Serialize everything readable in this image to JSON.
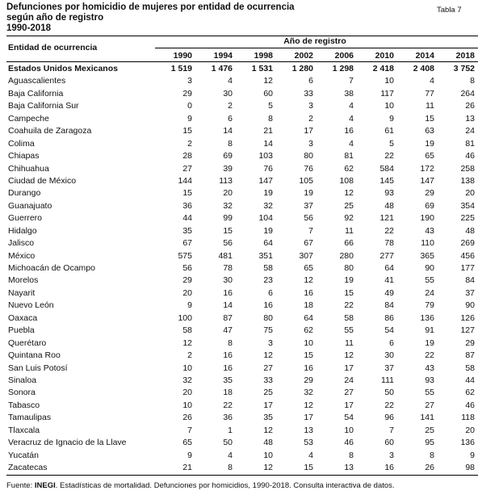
{
  "header": {
    "title": [
      "Defunciones por homicidio de mujeres por entidad de ocurrencia",
      "según año de registro",
      "1990-2018"
    ],
    "tag": "Tabla 7"
  },
  "table": {
    "row_header": "Entidad de ocurrencia",
    "group_header": "Año de registro",
    "columns": [
      "1990",
      "1994",
      "1998",
      "2002",
      "2006",
      "2010",
      "2014",
      "2018"
    ],
    "rows": [
      [
        "Estados Unidos Mexicanos",
        "1 519",
        "1 476",
        "1 531",
        "1 280",
        "1 298",
        "2 418",
        "2 408",
        "3 752"
      ],
      [
        "Aguascalientes",
        3,
        4,
        12,
        6,
        7,
        10,
        4,
        8
      ],
      [
        "Baja California",
        29,
        30,
        60,
        33,
        38,
        117,
        77,
        264
      ],
      [
        "Baja California Sur",
        0,
        2,
        5,
        3,
        4,
        10,
        11,
        26
      ],
      [
        "Campeche",
        9,
        6,
        8,
        2,
        4,
        9,
        15,
        13
      ],
      [
        "Coahuila de Zaragoza",
        15,
        14,
        21,
        17,
        16,
        61,
        63,
        24
      ],
      [
        "Colima",
        2,
        8,
        14,
        3,
        4,
        5,
        19,
        81
      ],
      [
        "Chiapas",
        28,
        69,
        103,
        80,
        81,
        22,
        65,
        46
      ],
      [
        "Chihuahua",
        27,
        39,
        76,
        76,
        62,
        584,
        172,
        258
      ],
      [
        "Ciudad de México",
        144,
        113,
        147,
        105,
        108,
        145,
        147,
        138
      ],
      [
        "Durango",
        15,
        20,
        19,
        19,
        12,
        93,
        29,
        20
      ],
      [
        "Guanajuato",
        36,
        32,
        32,
        37,
        25,
        48,
        69,
        354
      ],
      [
        "Guerrero",
        44,
        99,
        104,
        56,
        92,
        121,
        190,
        225
      ],
      [
        "Hidalgo",
        35,
        15,
        19,
        7,
        11,
        22,
        43,
        48
      ],
      [
        "Jalisco",
        67,
        56,
        64,
        67,
        66,
        78,
        110,
        269
      ],
      [
        "México",
        575,
        481,
        351,
        307,
        280,
        277,
        365,
        456
      ],
      [
        "Michoacán de Ocampo",
        56,
        78,
        58,
        65,
        80,
        64,
        90,
        177
      ],
      [
        "Morelos",
        29,
        30,
        23,
        12,
        19,
        41,
        55,
        84
      ],
      [
        "Nayarit",
        20,
        16,
        6,
        16,
        15,
        49,
        24,
        37
      ],
      [
        "Nuevo León",
        9,
        14,
        16,
        18,
        22,
        84,
        79,
        90
      ],
      [
        "Oaxaca",
        100,
        87,
        80,
        64,
        58,
        86,
        136,
        126
      ],
      [
        "Puebla",
        58,
        47,
        75,
        62,
        55,
        54,
        91,
        127
      ],
      [
        "Querétaro",
        12,
        8,
        3,
        10,
        11,
        6,
        19,
        29
      ],
      [
        "Quintana Roo",
        2,
        16,
        12,
        15,
        12,
        30,
        22,
        87
      ],
      [
        "San Luis Potosí",
        10,
        16,
        27,
        16,
        17,
        37,
        43,
        58
      ],
      [
        "Sinaloa",
        32,
        35,
        33,
        29,
        24,
        111,
        93,
        44
      ],
      [
        "Sonora",
        20,
        18,
        25,
        32,
        27,
        50,
        55,
        62
      ],
      [
        "Tabasco",
        10,
        22,
        17,
        12,
        17,
        22,
        27,
        46
      ],
      [
        "Tamaulipas",
        26,
        36,
        35,
        17,
        54,
        96,
        141,
        118
      ],
      [
        "Tlaxcala",
        7,
        1,
        12,
        13,
        10,
        7,
        25,
        20
      ],
      [
        "Veracruz de Ignacio de la Llave",
        65,
        50,
        48,
        53,
        46,
        60,
        95,
        136
      ],
      [
        "Yucatán",
        9,
        4,
        10,
        4,
        8,
        3,
        8,
        9
      ],
      [
        "Zacatecas",
        21,
        8,
        12,
        15,
        13,
        16,
        26,
        98
      ]
    ]
  },
  "footer": {
    "label": "Fuente:",
    "source": "INEGI",
    "text": ". Estadísticas de mortalidad. Defunciones por homicidios, 1990-2018. Consulta interactiva de datos."
  }
}
